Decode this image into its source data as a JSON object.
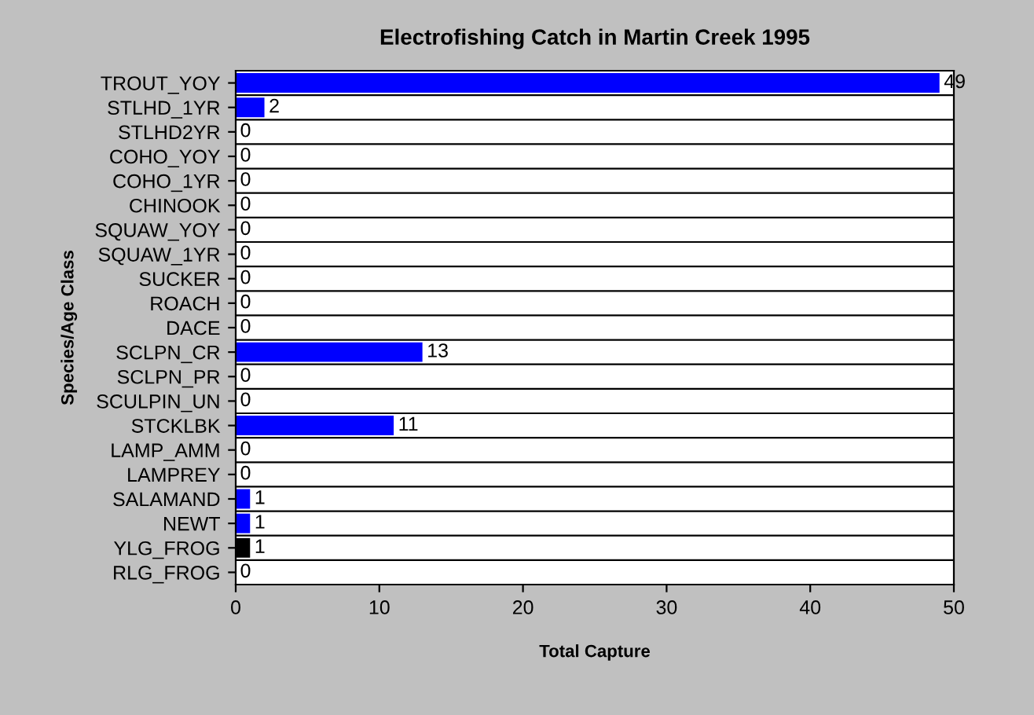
{
  "chart_data": {
    "type": "bar",
    "orientation": "horizontal",
    "title": "Electrofishing Catch in Martin Creek 1995",
    "xlabel": "Total Capture",
    "ylabel": "Species/Age Class",
    "categories": [
      "TROUT_YOY",
      "STLHD_1YR",
      "STLHD2YR",
      "COHO_YOY",
      "COHO_1YR",
      "CHINOOK",
      "SQUAW_YOY",
      "SQUAW_1YR",
      "SUCKER",
      "ROACH",
      "DACE",
      "SCLPN_CR",
      "SCLPN_PR",
      "SCULPIN_UN",
      "STCKLBK",
      "LAMP_AMM",
      "LAMPREY",
      "SALAMAND",
      "NEWT",
      "YLG_FROG",
      "RLG_FROG"
    ],
    "values": [
      49,
      2,
      0,
      0,
      0,
      0,
      0,
      0,
      0,
      0,
      0,
      13,
      0,
      0,
      11,
      0,
      0,
      1,
      1,
      1,
      0
    ],
    "colors": [
      "#0000ff",
      "#0000ff",
      "#0000ff",
      "#0000ff",
      "#0000ff",
      "#0000ff",
      "#0000ff",
      "#0000ff",
      "#0000ff",
      "#0000ff",
      "#0000ff",
      "#0000ff",
      "#0000ff",
      "#0000ff",
      "#0000ff",
      "#0000ff",
      "#0000ff",
      "#0000ff",
      "#0000ff",
      "#000000",
      "#0000ff"
    ],
    "xlim": [
      0,
      50
    ],
    "xticks": [
      0,
      10,
      20,
      30,
      40,
      50
    ],
    "data_labels": true,
    "grid": "y",
    "legend": false
  }
}
